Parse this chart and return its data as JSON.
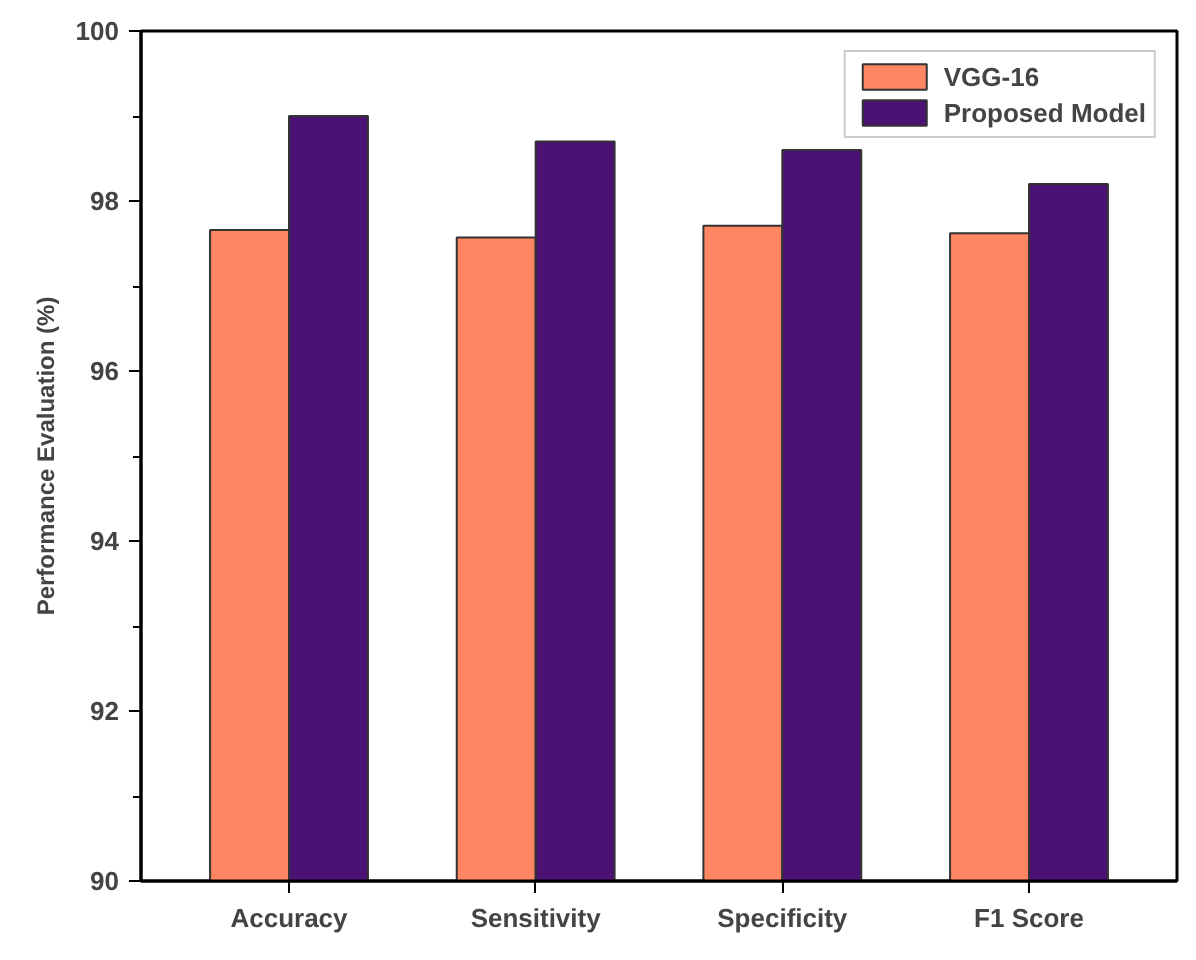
{
  "chart_data": {
    "type": "bar",
    "ylabel": "Performance Evaluation (%)",
    "categories": [
      "Accuracy",
      "Sensitivity",
      "Specificity",
      "F1 Score"
    ],
    "series": [
      {
        "name": "VGG-16",
        "color": "#fe8662",
        "values": [
          97.66,
          97.57,
          97.71,
          97.62
        ]
      },
      {
        "name": "Proposed Model",
        "color": "#4b1173",
        "values": [
          99.0,
          98.7,
          98.6,
          98.2
        ]
      }
    ],
    "ylim": [
      90,
      100
    ],
    "yticks": [
      90,
      92,
      94,
      96,
      98,
      100
    ],
    "grid": false,
    "legend": "top right"
  }
}
